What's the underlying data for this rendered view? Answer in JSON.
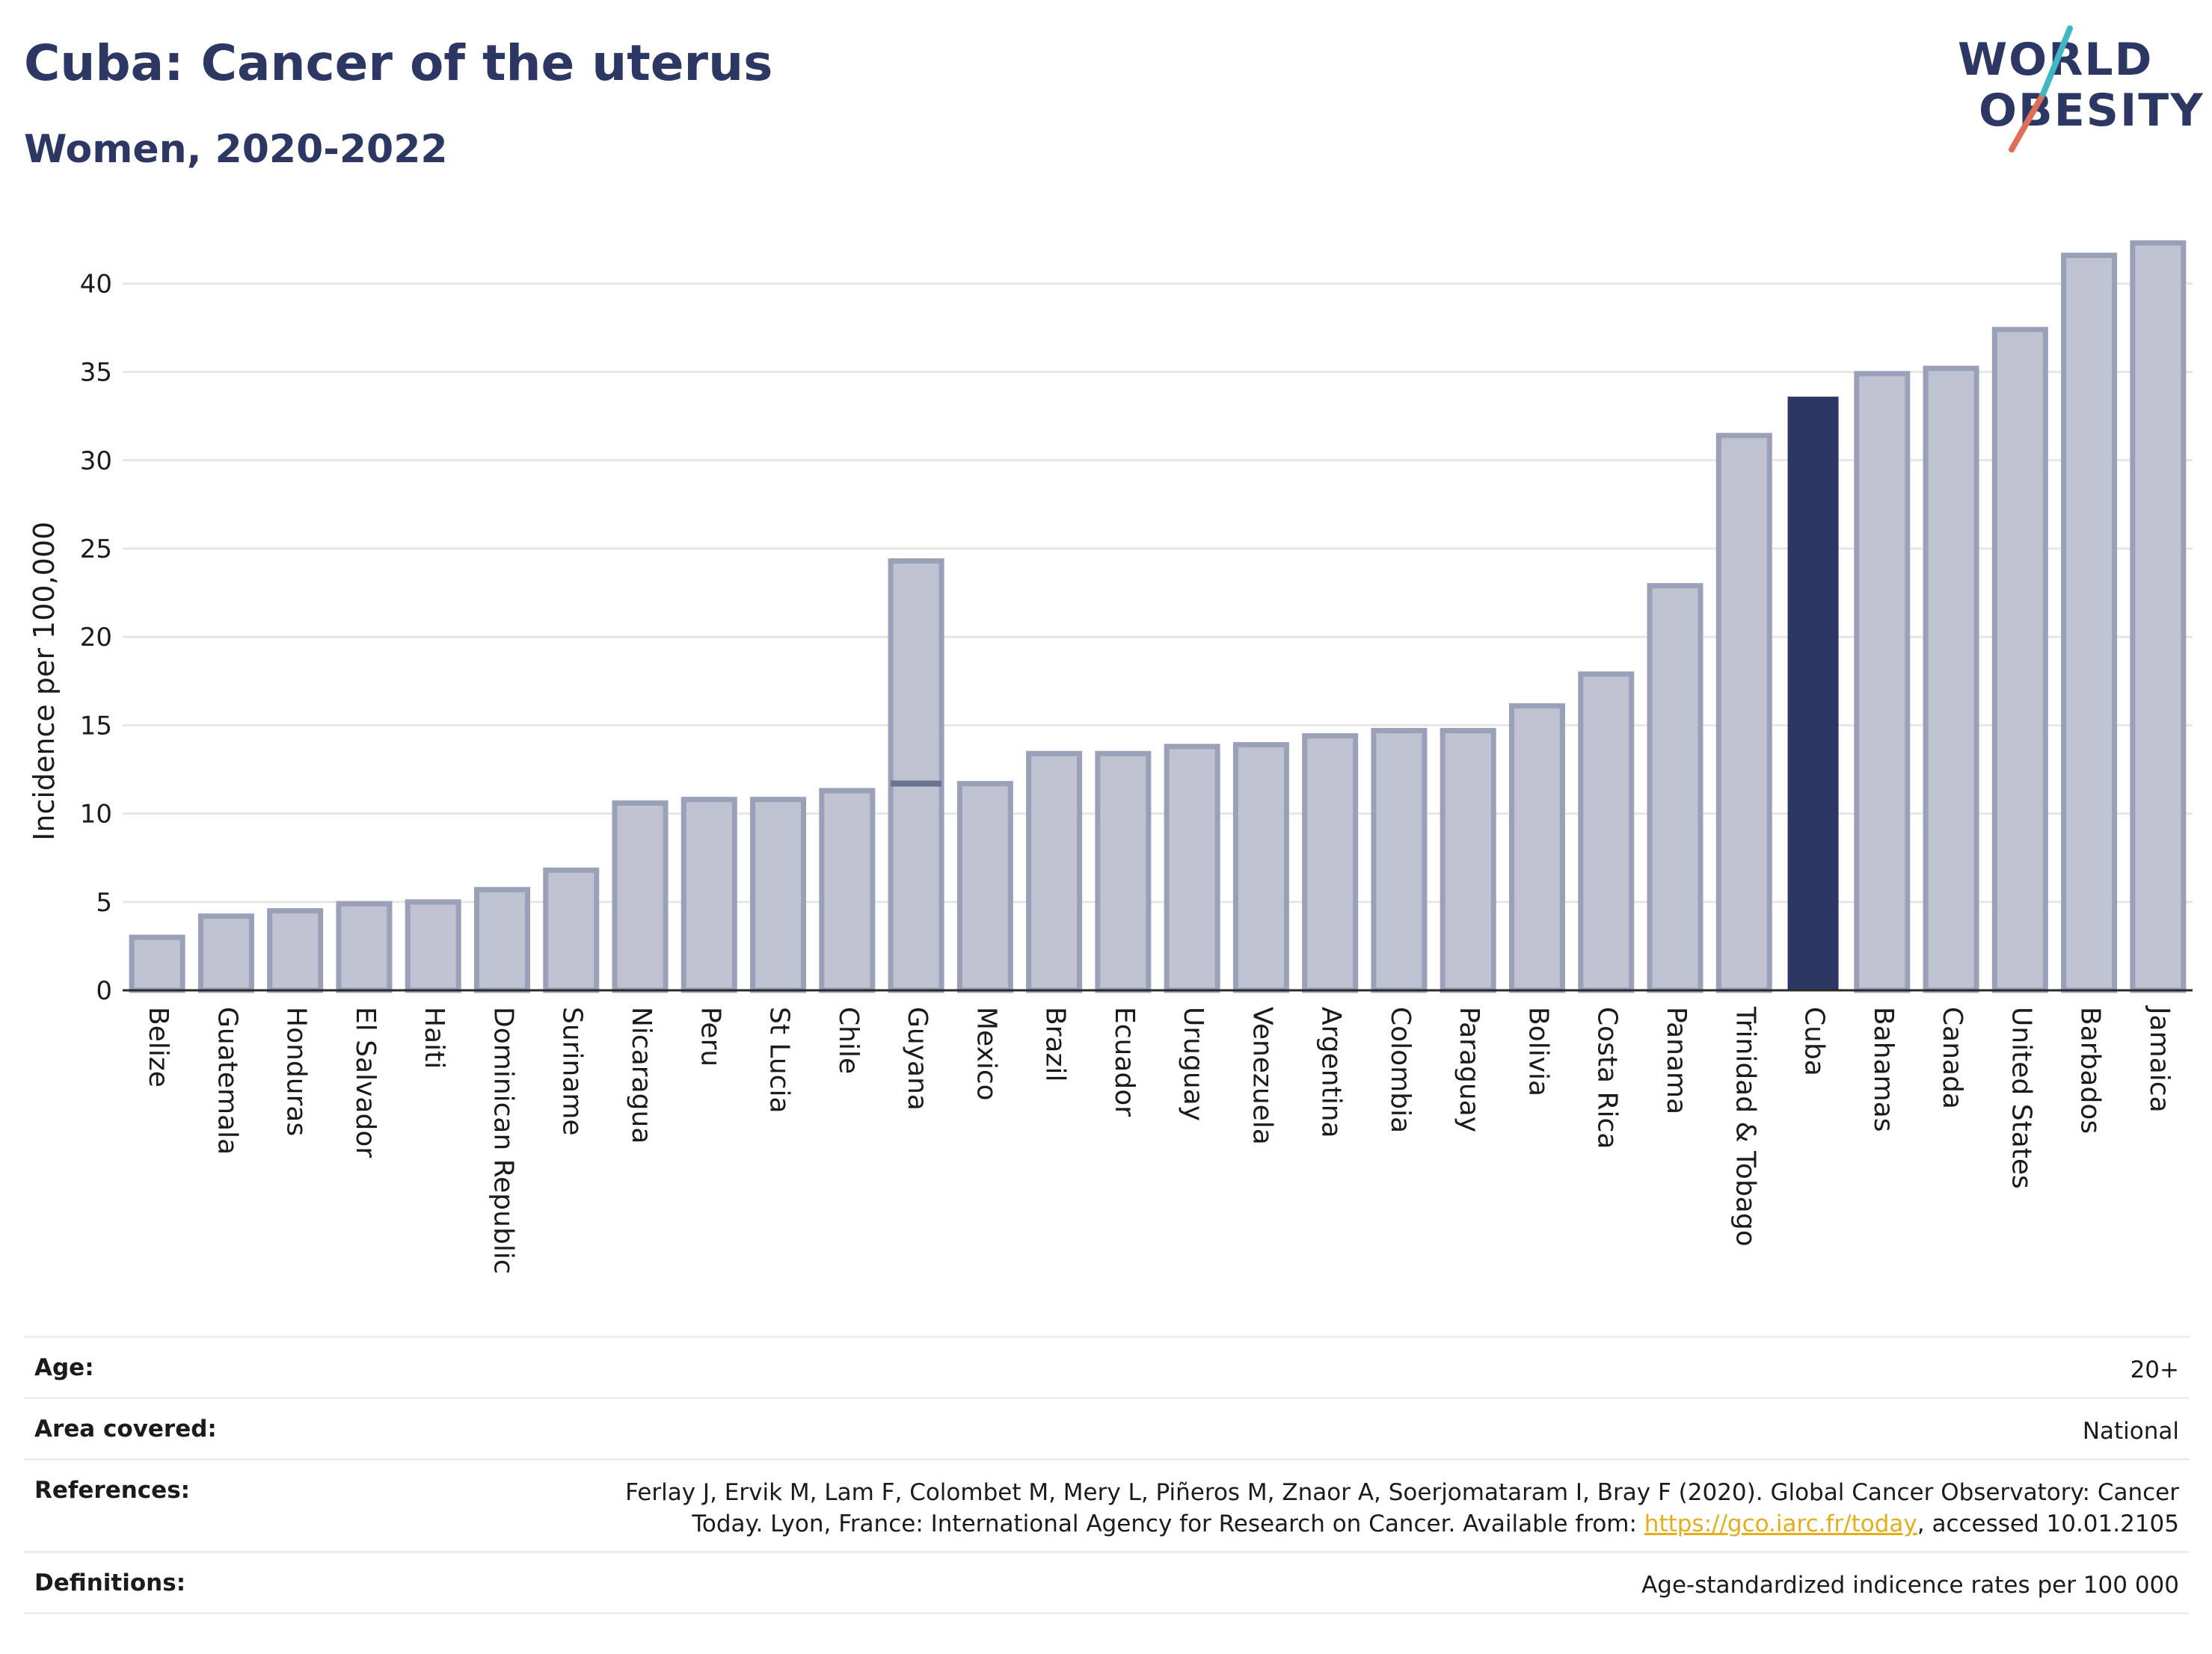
{
  "title": "Cuba: Cancer of the uterus",
  "subtitle": "Women, 2020-2022",
  "logo": {
    "line1": "WORLD",
    "line2": "OBESITY"
  },
  "colors": {
    "bar": "#bfc3d1",
    "bar_stroke": "#9aa0b7",
    "highlight": "#2d3764",
    "range_marker": "#6b7391",
    "grid": "#e6e6e6",
    "axis": "#2b2b2b"
  },
  "chart_data": {
    "type": "bar",
    "ylabel": "Incidence per 100,000",
    "xlabel": "",
    "ylim": [
      0,
      43
    ],
    "yticks": [
      0,
      5,
      10,
      15,
      20,
      25,
      30,
      35,
      40
    ],
    "grid": true,
    "highlight": "Cuba",
    "categories": [
      "Belize",
      "Guatemala",
      "Honduras",
      "El Salvador",
      "Haiti",
      "Dominican Republic",
      "Suriname",
      "Nicaragua",
      "Peru",
      "St Lucia",
      "Chile",
      "Guyana",
      "Mexico",
      "Brazil",
      "Ecuador",
      "Uruguay",
      "Venezuela",
      "Argentina",
      "Colombia",
      "Paraguay",
      "Bolivia",
      "Costa Rica",
      "Panama",
      "Trinidad & Tobago",
      "Cuba",
      "Bahamas",
      "Canada",
      "United States",
      "Barbados",
      "Jamaica"
    ],
    "values": [
      3.0,
      4.2,
      4.5,
      4.9,
      5.0,
      5.7,
      6.8,
      10.6,
      10.8,
      10.8,
      11.3,
      24.3,
      11.7,
      13.4,
      13.4,
      13.8,
      13.9,
      14.4,
      14.7,
      14.7,
      16.1,
      17.9,
      22.9,
      31.4,
      33.6,
      34.9,
      35.2,
      37.4,
      41.6,
      42.3
    ],
    "ranges": [
      {
        "category": "Guyana",
        "low": 11.7,
        "high": 24.3
      }
    ]
  },
  "info": {
    "age_label": "Age:",
    "age_value": "20+",
    "area_label": "Area covered:",
    "area_value": "National",
    "references_label": "References:",
    "references_text": "Ferlay J, Ervik M, Lam F, Colombet M, Mery L, Piñeros M, Znaor A, Soerjomataram I, Bray F (2020). Global Cancer Observatory: Cancer Today. Lyon, France: International Agency for Research on Cancer. Available from: ",
    "references_link": "https://gco.iarc.fr/today",
    "references_suffix": ", accessed 10.01.2105",
    "definitions_label": "Definitions:",
    "definitions_value": "Age-standardized indicence rates per 100 000"
  }
}
